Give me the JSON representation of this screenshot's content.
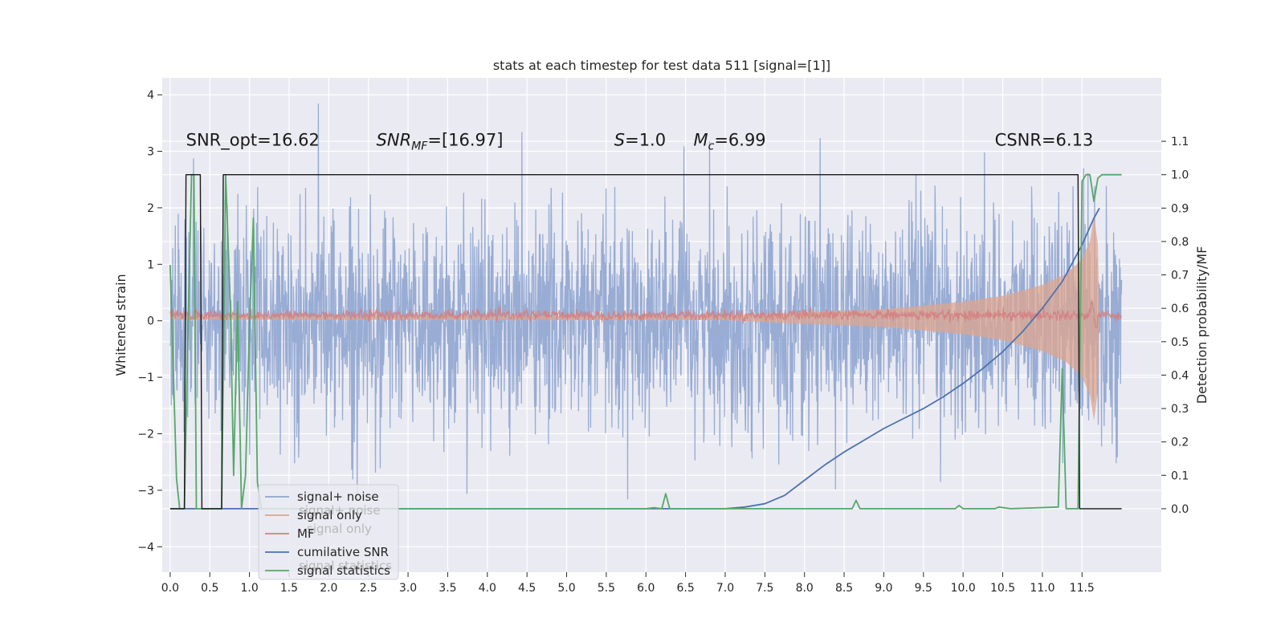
{
  "chart_data": {
    "type": "line",
    "title": "stats at each timestep for test data 511 [signal=[1]]",
    "xlabel": "",
    "ylabel": "Whitened strain",
    "y2label": "Detection probability/MF",
    "xlim": [
      -0.1,
      12.5
    ],
    "ylim": [
      -4.45,
      4.3
    ],
    "y2lim": [
      -0.19,
      1.29
    ],
    "grid": true,
    "x_ticks": [
      "0.0",
      "0.5",
      "1.0",
      "1.5",
      "2.0",
      "2.5",
      "3.0",
      "3.5",
      "4.0",
      "4.5",
      "5.0",
      "5.5",
      "6.0",
      "6.5",
      "7.0",
      "7.5",
      "8.0",
      "8.5",
      "9.0",
      "9.5",
      "10.0",
      "10.5",
      "11.0",
      "11.5"
    ],
    "y_ticks": [
      "−4",
      "−3",
      "−2",
      "−1",
      "0",
      "1",
      "2",
      "3",
      "4"
    ],
    "y2_ticks": [
      "0.0",
      "0.1",
      "0.2",
      "0.3",
      "0.4",
      "0.5",
      "0.6",
      "0.7",
      "0.8",
      "0.9",
      "1.0",
      "1.1"
    ],
    "annotations": [
      {
        "text": "SNR_opt=16.62",
        "x": 0.2,
        "y": 3.1
      },
      {
        "text": "SNR_MF=[16.97]",
        "x": 2.6,
        "y": 3.1
      },
      {
        "text": "S=1.0",
        "x": 5.6,
        "y": 3.1
      },
      {
        "text": "M_c=6.99",
        "x": 6.6,
        "y": 3.1
      },
      {
        "text": "CSNR=6.13",
        "x": 10.4,
        "y": 3.1
      }
    ],
    "legend": {
      "position": "lower-left",
      "entries": [
        {
          "label": "signal+ noise",
          "color": "#8fa5d0"
        },
        {
          "label": "signal only",
          "color": "#dda58f"
        },
        {
          "label": "MF",
          "color": "#d47f7f"
        },
        {
          "label": "cumilative SNR",
          "color": "#4c72b0"
        },
        {
          "label": "signal statistics",
          "color": "#55a868"
        }
      ],
      "ghost_labels": [
        "signal+ noise",
        "signal only",
        "signal statistics"
      ]
    },
    "series": [
      {
        "name": "signal+ noise",
        "axis": "left",
        "color": "#8fa5d0",
        "x_range": [
          0.0,
          12.0
        ],
        "typical_range": [
          -1.8,
          1.8
        ],
        "extremes": [
          -4.1,
          3.9
        ]
      },
      {
        "name": "signal only",
        "axis": "left",
        "color": "#dda58f",
        "x_range": [
          0.0,
          12.0
        ],
        "envelope": [
          [
            0.0,
            0.02
          ],
          [
            7.0,
            0.03
          ],
          [
            8.0,
            0.08
          ],
          [
            9.0,
            0.12
          ],
          [
            10.0,
            0.22
          ],
          [
            10.5,
            0.3
          ],
          [
            11.0,
            0.45
          ],
          [
            11.3,
            0.6
          ],
          [
            11.5,
            0.8
          ],
          [
            11.6,
            1.05
          ],
          [
            11.65,
            1.4
          ],
          [
            11.7,
            1.0
          ],
          [
            11.72,
            0.0
          ]
        ]
      },
      {
        "name": "MF",
        "axis": "left",
        "color": "#d47f7f",
        "x_range": [
          0.0,
          12.0
        ],
        "typical_range": [
          -0.05,
          0.25
        ]
      },
      {
        "name": "cumilative SNR",
        "axis": "right",
        "color": "#4c72b0",
        "x": [
          0.0,
          7.0,
          7.25,
          7.5,
          7.75,
          8.0,
          8.25,
          8.5,
          8.75,
          9.0,
          9.25,
          9.5,
          9.75,
          10.0,
          10.25,
          10.5,
          10.75,
          11.0,
          11.25,
          11.5,
          11.65,
          11.72
        ],
        "y": [
          0.0,
          0.0,
          0.005,
          0.015,
          0.04,
          0.085,
          0.13,
          0.17,
          0.205,
          0.24,
          0.27,
          0.3,
          0.335,
          0.375,
          0.42,
          0.47,
          0.53,
          0.6,
          0.68,
          0.79,
          0.87,
          0.9
        ]
      },
      {
        "name": "signal statistics",
        "axis": "right",
        "color": "#55a868",
        "x": [
          0.0,
          0.08,
          0.12,
          0.18,
          0.22,
          0.27,
          0.3,
          0.33,
          0.36,
          0.42,
          0.48,
          0.55,
          0.6,
          0.65,
          0.7,
          0.76,
          0.8,
          0.85,
          0.9,
          0.95,
          1.0,
          1.05,
          1.1,
          1.15,
          1.2,
          1.3,
          3.0,
          3.2,
          6.0,
          6.1,
          6.2,
          6.25,
          6.3,
          6.4,
          8.6,
          8.65,
          8.7,
          8.8,
          9.9,
          9.95,
          10.0,
          10.1,
          10.4,
          10.45,
          10.6,
          11.2,
          11.25,
          11.3,
          11.4,
          11.45,
          11.5,
          11.55,
          11.6,
          11.65,
          11.7,
          11.75,
          11.8,
          12.0
        ],
        "y": [
          0.73,
          0.09,
          0.0,
          0.0,
          0.49,
          1.0,
          1.0,
          0.0,
          0.0,
          0.0,
          0.0,
          0.0,
          0.0,
          0.0,
          1.0,
          0.6,
          0.1,
          0.62,
          0.0,
          0.1,
          0.55,
          0.87,
          0.08,
          0.0,
          0.0,
          0.0,
          0.0,
          0.0,
          0.0,
          0.003,
          0.0,
          0.045,
          0.0,
          0.0,
          0.0,
          0.025,
          0.0,
          0.0,
          0.0,
          0.01,
          0.0,
          0.0,
          0.0,
          0.005,
          0.0,
          0.005,
          0.42,
          0.0,
          0.0,
          0.0,
          0.98,
          1.0,
          1.0,
          0.92,
          0.99,
          1.0,
          1.0,
          1.0
        ]
      },
      {
        "name": "",
        "axis": "right",
        "color": "#1a1a1a",
        "x": [
          0.0,
          0.18,
          0.2,
          0.38,
          0.4,
          0.65,
          0.67,
          11.45,
          11.47,
          12.0
        ],
        "y": [
          0.0,
          0.0,
          1.0,
          1.0,
          0.0,
          0.0,
          1.0,
          1.0,
          0.0,
          0.0
        ]
      }
    ]
  }
}
